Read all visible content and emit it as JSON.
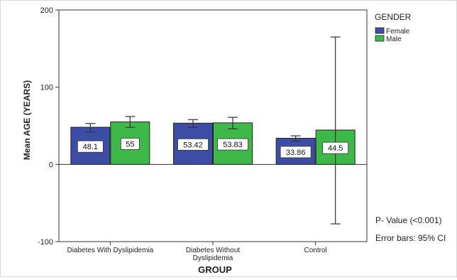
{
  "chart_data": {
    "type": "bar",
    "title": "",
    "xlabel": "GROUP",
    "ylabel": "Mean AGE (YEARS)",
    "ylim": [
      -100,
      200
    ],
    "yticks": [
      -100,
      0,
      100,
      200
    ],
    "categories": [
      [
        "Diabetes With Dyslipidemia"
      ],
      [
        "Diabetes Without",
        "Dyslipidemia"
      ],
      [
        "Control"
      ]
    ],
    "legend_title": "GENDER",
    "legend_position": "top-right",
    "series": [
      {
        "name": "Female",
        "color": "#3c4da6",
        "values": [
          48.1,
          53.42,
          33.86
        ],
        "labels": [
          "48.1",
          "53.42",
          "33.86"
        ],
        "ci": [
          [
            42,
            53
          ],
          [
            48,
            58
          ],
          [
            30,
            37
          ]
        ]
      },
      {
        "name": "Male",
        "color": "#3fb84a",
        "values": [
          55,
          53.83,
          44.5
        ],
        "labels": [
          "55",
          "53.83",
          "44.5"
        ],
        "ci": [
          [
            48,
            62
          ],
          [
            46,
            61
          ],
          [
            -77,
            165
          ]
        ]
      }
    ],
    "annotations": [
      "P- Value (<0.001)",
      "Error bars: 95% CI"
    ]
  }
}
